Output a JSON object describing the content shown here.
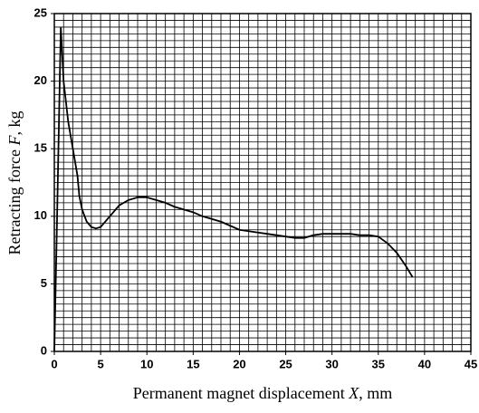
{
  "chart_data": {
    "type": "line",
    "xlabel": [
      "Permanent magnet displacement ",
      "X",
      ", mm"
    ],
    "ylabel": [
      "Retracting force ",
      "F",
      ", kg"
    ],
    "xlim": [
      0,
      45
    ],
    "ylim": [
      0,
      25
    ],
    "xticks": [
      0,
      5,
      10,
      15,
      20,
      25,
      30,
      35,
      40,
      45
    ],
    "yticks": [
      0,
      5,
      10,
      15,
      20,
      25
    ],
    "grid": true,
    "minor_grid": {
      "x": 1,
      "y": 0.5
    },
    "series": [
      {
        "color": "#000000",
        "x": [
          0,
          0.3,
          0.7,
          1,
          1.5,
          2,
          2.5,
          2.7,
          3,
          3.5,
          4,
          4.5,
          5,
          6,
          7,
          8,
          9,
          10,
          11,
          12,
          13,
          14,
          15,
          16,
          17,
          18,
          19,
          20,
          21,
          22,
          23,
          24,
          25,
          26,
          27,
          28,
          29,
          30,
          31,
          32,
          33,
          34,
          35,
          36,
          37,
          38,
          38.7
        ],
        "values": [
          0,
          10,
          24,
          20,
          17,
          15,
          13,
          11.5,
          10.5,
          9.6,
          9.2,
          9.1,
          9.2,
          10,
          10.8,
          11.2,
          11.4,
          11.4,
          11.2,
          11,
          10.7,
          10.5,
          10.3,
          10,
          9.8,
          9.6,
          9.3,
          9,
          8.9,
          8.8,
          8.7,
          8.6,
          8.5,
          8.4,
          8.4,
          8.6,
          8.7,
          8.7,
          8.7,
          8.7,
          8.6,
          8.6,
          8.5,
          8,
          7.3,
          6.3,
          5.5
        ]
      }
    ]
  }
}
